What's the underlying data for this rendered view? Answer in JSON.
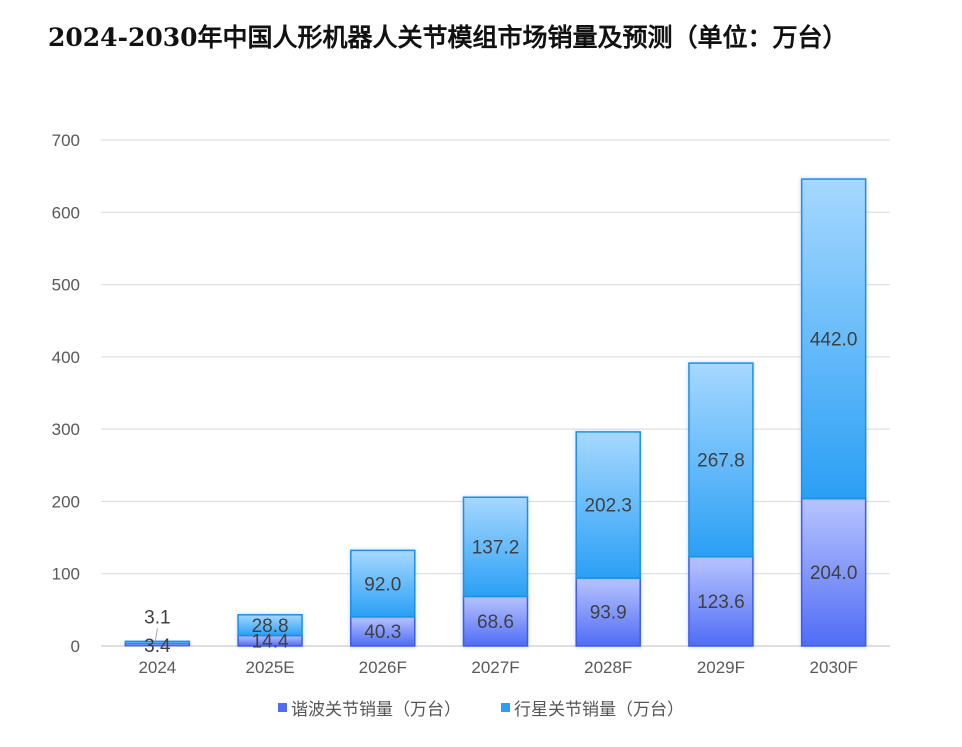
{
  "title": "2024-2030年中国人形机器人关节模组市场销量及预测（单位：万台）",
  "colors": {
    "harmonic_top": "#b8c4ff",
    "harmonic_bottom": "#4f6cf5",
    "planetary_top": "#a6d8ff",
    "planetary_bottom": "#2a9ff5",
    "grid": "#d9d9d9",
    "axis_text": "#595959",
    "label_text": "#404040"
  },
  "chart_data": {
    "type": "bar",
    "stacked": true,
    "title": "2024-2030年中国人形机器人关节模组市场销量及预测（单位：万台）",
    "categories": [
      "2024",
      "2025E",
      "2026F",
      "2027F",
      "2028F",
      "2029F",
      "2030F"
    ],
    "series": [
      {
        "name": "谐波关节销量（万台）",
        "values": [
          3.4,
          14.4,
          40.3,
          68.6,
          93.9,
          123.6,
          204.0
        ]
      },
      {
        "name": "行星关节销量（万台）",
        "values": [
          3.1,
          28.8,
          92.0,
          137.2,
          202.3,
          267.8,
          442.0
        ]
      }
    ],
    "yticks": [
      0,
      100,
      200,
      300,
      400,
      500,
      600,
      700
    ],
    "ylim": [
      0,
      700
    ],
    "grid": true,
    "legend_position": "bottom",
    "xlabel": "",
    "ylabel": ""
  }
}
